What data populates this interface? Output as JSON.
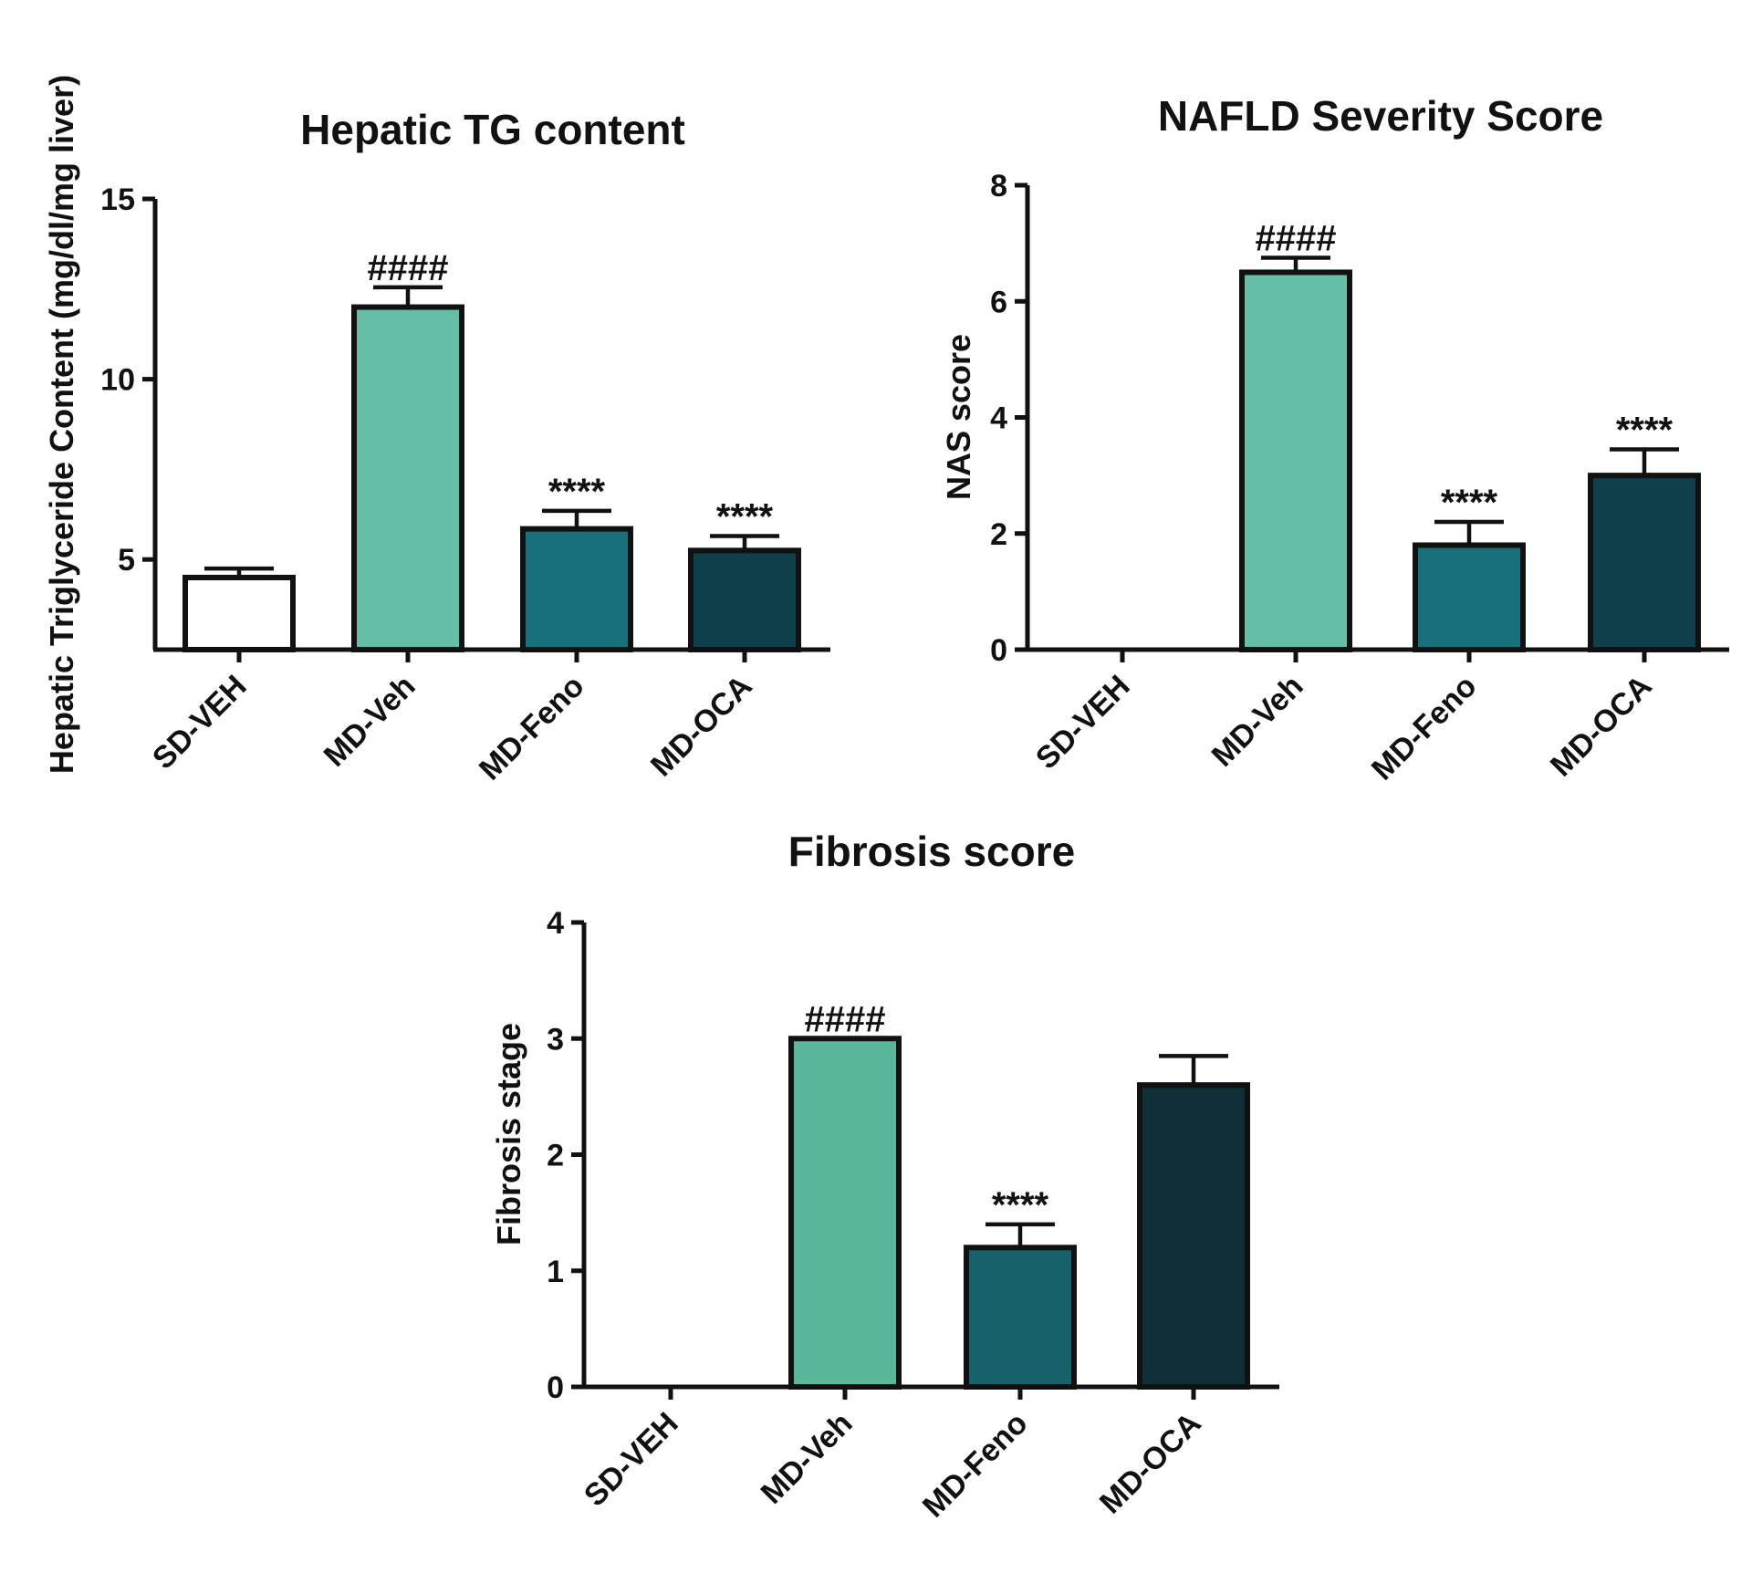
{
  "chart_data": [
    {
      "type": "bar",
      "title": "Hepatic TG content",
      "ylabel": "Hepatic Triglyceride Content (mg/dl/mg liver)",
      "xlabel": "",
      "categories": [
        "SD-VEH",
        "MD-Veh",
        "MD-Feno",
        "MD-OCA"
      ],
      "values": [
        4.5,
        12.0,
        5.85,
        5.25
      ],
      "errors": [
        0.25,
        0.55,
        0.5,
        0.4
      ],
      "annotations": [
        "",
        "####",
        "****",
        "****"
      ],
      "ylim": [
        2.5,
        15
      ],
      "yticks": [
        5,
        10,
        15
      ],
      "colors": [
        "#ffffff",
        "#67bea8",
        "#17707a",
        "#103f4c"
      ],
      "grid": false
    },
    {
      "type": "bar",
      "title": "NAFLD Severity Score",
      "ylabel": "NAS score",
      "xlabel": "",
      "categories": [
        "SD-VEH",
        "MD-Veh",
        "MD-Feno",
        "MD-OCA"
      ],
      "values": [
        0,
        6.5,
        1.8,
        3.0
      ],
      "errors": [
        0,
        0.25,
        0.4,
        0.45
      ],
      "annotations": [
        "",
        "####",
        "****",
        "****"
      ],
      "ylim": [
        0,
        8
      ],
      "yticks": [
        0,
        2,
        4,
        6,
        8
      ],
      "colors": [
        "#ffffff",
        "#67bea8",
        "#17707a",
        "#103f4c"
      ],
      "grid": false
    },
    {
      "type": "bar",
      "title": "Fibrosis score",
      "ylabel": "Fibrosis stage",
      "xlabel": "",
      "categories": [
        "SD-VEH",
        "MD-Veh",
        "MD-Feno",
        "MD-OCA"
      ],
      "values": [
        0,
        3.0,
        1.2,
        2.6
      ],
      "errors": [
        0,
        0,
        0.2,
        0.25
      ],
      "annotations": [
        "",
        "####",
        "****",
        ""
      ],
      "ylim": [
        0,
        4
      ],
      "yticks": [
        0,
        1,
        2,
        3,
        4
      ],
      "colors": [
        "#ffffff",
        "#5ab79c",
        "#17616a",
        "#0e2f36"
      ],
      "grid": false
    }
  ]
}
